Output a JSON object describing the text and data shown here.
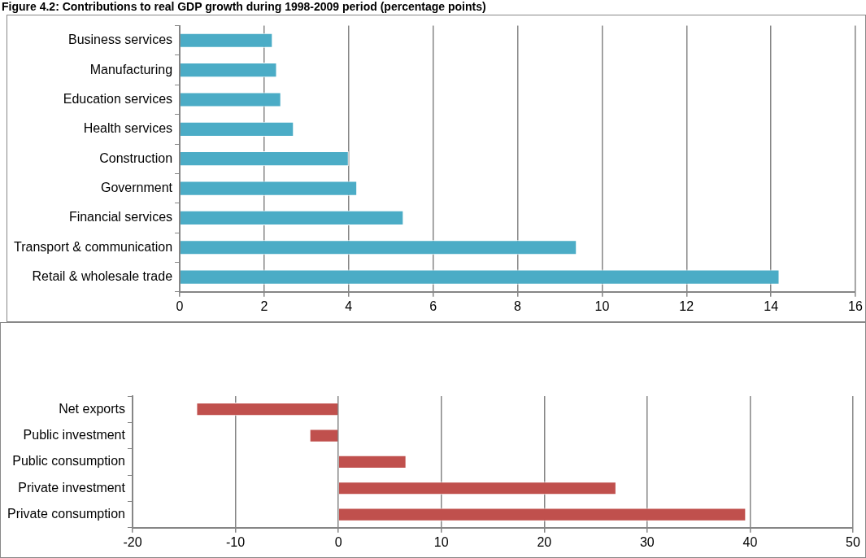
{
  "chart_data": [
    {
      "type": "bar",
      "orientation": "horizontal",
      "title": "Figure 4.2: Contributions to real GDP growth during 1998-2009 period (percentage points)",
      "categories": [
        "Business services",
        "Manufacturing",
        "Education services",
        "Health services",
        "Construction",
        "Government",
        "Financial services",
        "Transport & communication",
        "Retail & wholesale trade"
      ],
      "values": [
        2.2,
        2.3,
        2.4,
        2.7,
        4.0,
        4.2,
        5.3,
        9.4,
        14.2
      ],
      "color": "#4bacc6",
      "xlim": [
        0,
        16
      ],
      "xticks": [
        0,
        2,
        4,
        6,
        8,
        10,
        12,
        14,
        16
      ],
      "grid": "x",
      "legend": false
    },
    {
      "type": "bar",
      "orientation": "horizontal",
      "categories": [
        "Net exports",
        "Public investment",
        "Public consumption",
        "Private investment",
        "Private consumption"
      ],
      "values": [
        -13.8,
        -2.8,
        6.6,
        27.0,
        39.6
      ],
      "color": "#c0504d",
      "xlim": [
        -20,
        50
      ],
      "xticks": [
        -20,
        -10,
        0,
        10,
        20,
        30,
        40,
        50
      ],
      "grid": "x",
      "legend": false
    }
  ]
}
